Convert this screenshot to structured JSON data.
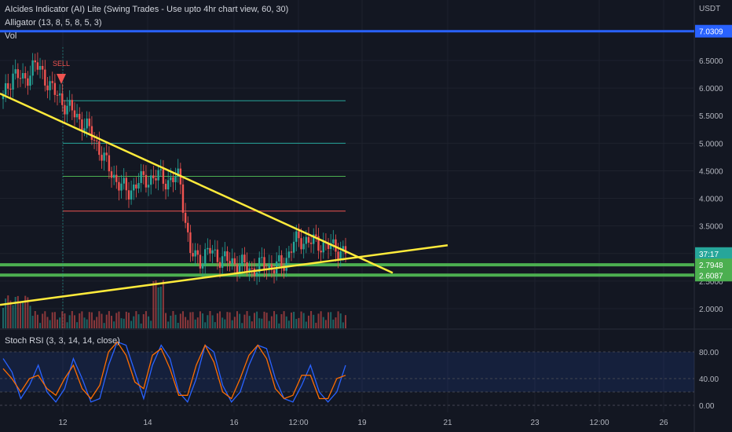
{
  "indicators": {
    "main": "AIcides Indicator (AI) Lite (Swing Trades - Use upto 4hr chart view, 60, 30)",
    "alligator": "Alligator (13, 8, 5, 8, 5, 3)",
    "volume": "Vol",
    "stoch": "Stoch RSI (3, 3, 14, 14, close)"
  },
  "signal_label": "SELL",
  "chart_data": [
    {
      "type": "line",
      "title": "",
      "currency": "USDT",
      "y_ticks": [
        "2.0000",
        "2.5000",
        "3.0000",
        "3.5000",
        "4.0000",
        "4.5000",
        "5.0000",
        "5.5000",
        "6.0000",
        "6.5000"
      ],
      "ylim": [
        1.65,
        7.4
      ],
      "x_ticks": [
        "12",
        "14",
        "16",
        "12:00",
        "19",
        "21",
        "23",
        "12:00",
        "26"
      ],
      "price_labels": [
        {
          "label": "7.0309",
          "value": 7.0309,
          "color": "#2962ff"
        },
        {
          "label": "37:17",
          "value": 3.0,
          "color": "#26a69a"
        },
        {
          "label": "2.7948",
          "value": 2.7948,
          "color": "#4caf50"
        },
        {
          "label": "2.6087",
          "value": 2.6087,
          "color": "#4caf50"
        }
      ],
      "horizontal_levels": [
        {
          "value": 7.0309,
          "color": "#2962ff"
        },
        {
          "value": 5.77,
          "color": "#26a69a"
        },
        {
          "value": 5.0,
          "color": "#26a69a"
        },
        {
          "value": 4.4,
          "color": "#4caf50"
        },
        {
          "value": 3.77,
          "color": "#ef5350"
        },
        {
          "value": 2.7948,
          "color": "#4caf50"
        },
        {
          "value": 2.6087,
          "color": "#4caf50"
        }
      ],
      "trendlines": [
        {
          "from": [
            0,
            5.9
          ],
          "to": [
            500,
            2.65
          ],
          "color": "#ffeb3b"
        },
        {
          "from": [
            0,
            2.07
          ],
          "to": [
            570,
            3.15
          ],
          "color": "#ffeb3b"
        }
      ],
      "series": [
        {
          "values": [
            5.8,
            6.3,
            6.1,
            6.45,
            6.2,
            5.9,
            5.7,
            5.5,
            5.3,
            5.0,
            4.6,
            4.3,
            4.1,
            4.3,
            4.35,
            4.4,
            4.3,
            4.4,
            3.0,
            2.9,
            3.05,
            2.9,
            2.85,
            2.8,
            2.7,
            2.8,
            2.75,
            2.8,
            3.2,
            3.25,
            3.2,
            3.15,
            3.1,
            3.0
          ],
          "color": "#d1d4dc"
        }
      ]
    },
    {
      "type": "line",
      "title": "",
      "y_ticks": [
        "0.00",
        "40.00",
        "80.00"
      ],
      "ylim": [
        -5,
        100
      ],
      "bands": [
        20,
        80
      ],
      "series": [
        {
          "values": [
            70,
            50,
            10,
            30,
            60,
            20,
            5,
            25,
            70,
            40,
            5,
            10,
            60,
            95,
            90,
            50,
            10,
            60,
            90,
            70,
            20,
            5,
            40,
            90,
            80,
            30,
            5,
            20,
            60,
            90,
            85,
            40,
            10,
            5,
            30,
            60,
            20,
            5,
            20,
            60
          ],
          "color": "#2962ff"
        },
        {
          "values": [
            55,
            40,
            20,
            40,
            45,
            25,
            15,
            40,
            60,
            25,
            10,
            30,
            80,
            95,
            75,
            35,
            25,
            75,
            85,
            55,
            15,
            15,
            60,
            90,
            65,
            20,
            10,
            40,
            75,
            90,
            70,
            25,
            10,
            15,
            45,
            45,
            10,
            10,
            40,
            45
          ],
          "color": "#ff6d00"
        }
      ]
    }
  ]
}
